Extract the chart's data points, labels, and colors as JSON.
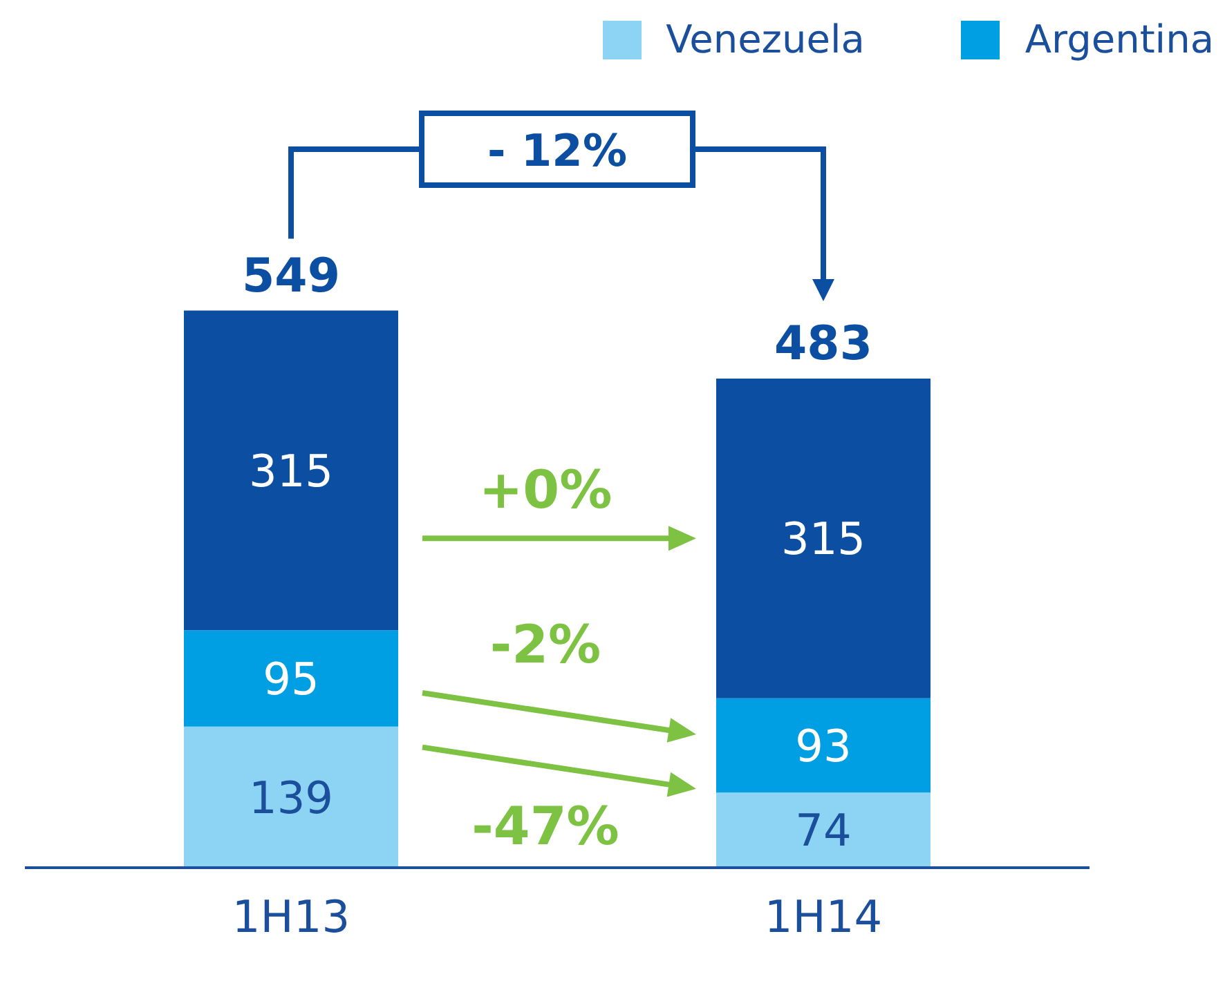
{
  "chart_data": {
    "type": "bar",
    "stacked": true,
    "categories": [
      "1H13",
      "1H14"
    ],
    "series": [
      {
        "name": "Venezuela",
        "color": "#8dd3f4",
        "values": [
          139,
          74
        ]
      },
      {
        "name": "Argentina",
        "color": "#009fe3",
        "values": [
          95,
          93
        ]
      },
      {
        "color": "#0b4ea2",
        "values": [
          315,
          315
        ]
      }
    ],
    "data_labels": true,
    "totals": [
      "549",
      "483"
    ],
    "legend": "top right",
    "annotations": [
      "- 12%",
      "+0%",
      "-2%",
      "-47%"
    ]
  }
}
